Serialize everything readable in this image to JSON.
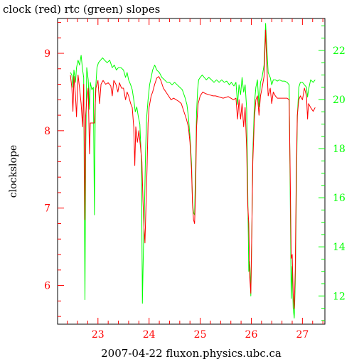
{
  "chart_data": {
    "type": "line",
    "title": "clock (red) rtc (green) slopes",
    "xlabel": "2007-04-22 fluxon.physics.ubc.ca",
    "ylabel": "clockslope",
    "x_ticks": [
      "23",
      "24",
      "25",
      "26",
      "27"
    ],
    "y_left_ticks": [
      "6",
      "7",
      "8",
      "9"
    ],
    "y_right_ticks": [
      "12",
      "14",
      "16",
      "18",
      "20",
      "22"
    ],
    "xlim": [
      22.21,
      27.44
    ],
    "ylim_left": [
      5.5,
      9.45
    ],
    "ylim_right": [
      10.85,
      23.3
    ],
    "colors": {
      "clock": "#ff0000",
      "rtc": "#00ff00",
      "axes": "#000000"
    },
    "series": [
      {
        "name": "clock",
        "axis": "left",
        "color": "#ff0000",
        "points": [
          [
            22.46,
            8.72
          ],
          [
            22.49,
            8.55
          ],
          [
            22.51,
            8.25
          ],
          [
            22.53,
            8.7
          ],
          [
            22.56,
            8.45
          ],
          [
            22.58,
            8.18
          ],
          [
            22.61,
            8.72
          ],
          [
            22.64,
            8.55
          ],
          [
            22.67,
            8.35
          ],
          [
            22.7,
            8.05
          ],
          [
            22.72,
            8.6
          ],
          [
            22.745,
            6.85
          ],
          [
            22.76,
            8.2
          ],
          [
            22.78,
            8.4
          ],
          [
            22.81,
            8.55
          ],
          [
            22.835,
            7.7
          ],
          [
            22.85,
            8.1
          ],
          [
            22.89,
            8.1
          ],
          [
            22.93,
            8.1
          ],
          [
            22.96,
            8.55
          ],
          [
            23.0,
            8.65
          ],
          [
            23.03,
            8.35
          ],
          [
            23.06,
            8.6
          ],
          [
            23.1,
            8.65
          ],
          [
            23.15,
            8.6
          ],
          [
            23.2,
            8.62
          ],
          [
            23.25,
            8.58
          ],
          [
            23.28,
            8.45
          ],
          [
            23.31,
            8.65
          ],
          [
            23.35,
            8.6
          ],
          [
            23.39,
            8.5
          ],
          [
            23.42,
            8.62
          ],
          [
            23.46,
            8.55
          ],
          [
            23.5,
            8.55
          ],
          [
            23.54,
            8.4
          ],
          [
            23.57,
            8.5
          ],
          [
            23.6,
            8.45
          ],
          [
            23.64,
            8.35
          ],
          [
            23.67,
            8.3
          ],
          [
            23.7,
            8.05
          ],
          [
            23.72,
            7.55
          ],
          [
            23.74,
            8.05
          ],
          [
            23.77,
            7.85
          ],
          [
            23.8,
            8.0
          ],
          [
            23.83,
            7.8
          ],
          [
            23.86,
            7.6
          ],
          [
            23.88,
            7.1
          ],
          [
            23.9,
            6.75
          ],
          [
            23.92,
            6.55
          ],
          [
            23.94,
            7.05
          ],
          [
            23.96,
            7.5
          ],
          [
            23.98,
            8.1
          ],
          [
            24.0,
            8.3
          ],
          [
            24.04,
            8.45
          ],
          [
            24.07,
            8.5
          ],
          [
            24.11,
            8.6
          ],
          [
            24.15,
            8.68
          ],
          [
            24.19,
            8.7
          ],
          [
            24.23,
            8.65
          ],
          [
            24.28,
            8.55
          ],
          [
            24.33,
            8.5
          ],
          [
            24.38,
            8.45
          ],
          [
            24.43,
            8.4
          ],
          [
            24.48,
            8.42
          ],
          [
            24.53,
            8.4
          ],
          [
            24.58,
            8.38
          ],
          [
            24.63,
            8.35
          ],
          [
            24.68,
            8.25
          ],
          [
            24.73,
            8.15
          ],
          [
            24.77,
            8.05
          ],
          [
            24.8,
            7.85
          ],
          [
            24.83,
            7.5
          ],
          [
            24.85,
            7.05
          ],
          [
            24.87,
            6.85
          ],
          [
            24.89,
            6.8
          ],
          [
            24.91,
            7.2
          ],
          [
            24.93,
            8.05
          ],
          [
            24.96,
            8.35
          ],
          [
            25.0,
            8.45
          ],
          [
            25.05,
            8.5
          ],
          [
            25.1,
            8.48
          ],
          [
            25.15,
            8.47
          ],
          [
            25.2,
            8.46
          ],
          [
            25.25,
            8.45
          ],
          [
            25.3,
            8.45
          ],
          [
            25.35,
            8.44
          ],
          [
            25.4,
            8.43
          ],
          [
            25.45,
            8.42
          ],
          [
            25.5,
            8.43
          ],
          [
            25.55,
            8.44
          ],
          [
            25.6,
            8.42
          ],
          [
            25.65,
            8.4
          ],
          [
            25.7,
            8.42
          ],
          [
            25.73,
            8.15
          ],
          [
            25.76,
            8.4
          ],
          [
            25.79,
            8.15
          ],
          [
            25.82,
            8.35
          ],
          [
            25.85,
            8.05
          ],
          [
            25.88,
            8.3
          ],
          [
            25.91,
            7.75
          ],
          [
            25.93,
            7.05
          ],
          [
            25.95,
            6.8
          ],
          [
            25.97,
            6.1
          ],
          [
            25.99,
            5.9
          ],
          [
            26.01,
            6.7
          ],
          [
            26.03,
            7.6
          ],
          [
            26.06,
            8.15
          ],
          [
            26.09,
            8.4
          ],
          [
            26.12,
            8.45
          ],
          [
            26.15,
            8.2
          ],
          [
            26.18,
            8.45
          ],
          [
            26.21,
            8.55
          ],
          [
            26.25,
            8.7
          ],
          [
            26.28,
            9.3
          ],
          [
            26.3,
            8.9
          ],
          [
            26.33,
            8.45
          ],
          [
            26.37,
            8.55
          ],
          [
            26.4,
            8.35
          ],
          [
            26.43,
            8.5
          ],
          [
            26.47,
            8.45
          ],
          [
            26.51,
            8.42
          ],
          [
            26.55,
            8.42
          ],
          [
            26.6,
            8.42
          ],
          [
            26.65,
            8.42
          ],
          [
            26.7,
            8.42
          ],
          [
            26.74,
            8.4
          ],
          [
            26.76,
            7.5
          ],
          [
            26.78,
            6.35
          ],
          [
            26.8,
            6.4
          ],
          [
            26.82,
            5.9
          ],
          [
            26.84,
            5.7
          ],
          [
            26.86,
            6.2
          ],
          [
            26.88,
            7.4
          ],
          [
            26.9,
            8.2
          ],
          [
            26.93,
            8.4
          ],
          [
            26.96,
            8.45
          ],
          [
            27.0,
            8.4
          ],
          [
            27.04,
            8.55
          ],
          [
            27.08,
            8.45
          ],
          [
            27.1,
            8.15
          ],
          [
            27.12,
            8.35
          ],
          [
            27.16,
            8.3
          ],
          [
            27.21,
            8.25
          ],
          [
            27.25,
            8.3
          ]
        ]
      },
      {
        "name": "rtc",
        "axis": "right",
        "color": "#00ff00",
        "points": [
          [
            22.46,
            21.1
          ],
          [
            22.49,
            21.0
          ],
          [
            22.51,
            20.5
          ],
          [
            22.53,
            21.2
          ],
          [
            22.56,
            20.7
          ],
          [
            22.58,
            21.3
          ],
          [
            22.61,
            21.6
          ],
          [
            22.64,
            21.4
          ],
          [
            22.67,
            21.8
          ],
          [
            22.7,
            21.2
          ],
          [
            22.72,
            20.9
          ],
          [
            22.745,
            11.85
          ],
          [
            22.76,
            17.8
          ],
          [
            22.78,
            21.3
          ],
          [
            22.81,
            20.8
          ],
          [
            22.835,
            19.6
          ],
          [
            22.85,
            20.7
          ],
          [
            22.88,
            20.4
          ],
          [
            22.91,
            20.5
          ],
          [
            22.93,
            15.3
          ],
          [
            22.95,
            20.3
          ],
          [
            22.98,
            21.3
          ],
          [
            23.01,
            21.5
          ],
          [
            23.05,
            21.6
          ],
          [
            23.09,
            21.7
          ],
          [
            23.13,
            21.6
          ],
          [
            23.18,
            21.5
          ],
          [
            23.23,
            21.6
          ],
          [
            23.28,
            21.3
          ],
          [
            23.32,
            21.4
          ],
          [
            23.36,
            21.2
          ],
          [
            23.4,
            21.3
          ],
          [
            23.45,
            21.3
          ],
          [
            23.5,
            21.2
          ],
          [
            23.54,
            20.9
          ],
          [
            23.57,
            21.1
          ],
          [
            23.6,
            20.8
          ],
          [
            23.64,
            20.6
          ],
          [
            23.67,
            20.4
          ],
          [
            23.7,
            20.0
          ],
          [
            23.73,
            19.5
          ],
          [
            23.76,
            19.7
          ],
          [
            23.79,
            19.3
          ],
          [
            23.82,
            19.0
          ],
          [
            23.85,
            17.5
          ],
          [
            23.87,
            11.7
          ],
          [
            23.89,
            14.0
          ],
          [
            23.91,
            15.5
          ],
          [
            23.93,
            17.8
          ],
          [
            23.95,
            19.2
          ],
          [
            23.98,
            20.0
          ],
          [
            24.01,
            20.6
          ],
          [
            24.04,
            20.9
          ],
          [
            24.07,
            21.2
          ],
          [
            24.11,
            21.4
          ],
          [
            24.15,
            21.2
          ],
          [
            24.2,
            21.1
          ],
          [
            24.25,
            20.9
          ],
          [
            24.3,
            20.8
          ],
          [
            24.35,
            20.7
          ],
          [
            24.4,
            20.7
          ],
          [
            24.45,
            20.6
          ],
          [
            24.5,
            20.7
          ],
          [
            24.55,
            20.6
          ],
          [
            24.6,
            20.5
          ],
          [
            24.65,
            20.4
          ],
          [
            24.7,
            20.1
          ],
          [
            24.74,
            19.8
          ],
          [
            24.77,
            19.3
          ],
          [
            24.8,
            18.5
          ],
          [
            24.83,
            17.4
          ],
          [
            24.85,
            15.8
          ],
          [
            24.87,
            15.4
          ],
          [
            24.89,
            15.3
          ],
          [
            24.91,
            17.2
          ],
          [
            24.93,
            19.5
          ],
          [
            24.95,
            20.4
          ],
          [
            24.97,
            20.8
          ],
          [
            25.0,
            20.9
          ],
          [
            25.04,
            21.0
          ],
          [
            25.08,
            20.9
          ],
          [
            25.12,
            20.8
          ],
          [
            25.17,
            20.9
          ],
          [
            25.22,
            20.8
          ],
          [
            25.27,
            20.7
          ],
          [
            25.32,
            20.8
          ],
          [
            25.37,
            20.7
          ],
          [
            25.42,
            20.8
          ],
          [
            25.47,
            20.7
          ],
          [
            25.52,
            20.75
          ],
          [
            25.57,
            20.6
          ],
          [
            25.61,
            20.7
          ],
          [
            25.66,
            20.55
          ],
          [
            25.7,
            20.7
          ],
          [
            25.73,
            19.8
          ],
          [
            25.76,
            20.6
          ],
          [
            25.79,
            20.2
          ],
          [
            25.82,
            20.9
          ],
          [
            25.85,
            20.3
          ],
          [
            25.88,
            20.6
          ],
          [
            25.91,
            19.6
          ],
          [
            25.93,
            16.5
          ],
          [
            25.95,
            13.0
          ],
          [
            25.97,
            13.4
          ],
          [
            25.99,
            12.0
          ],
          [
            26.01,
            14.5
          ],
          [
            26.03,
            17.8
          ],
          [
            26.06,
            19.8
          ],
          [
            26.09,
            20.5
          ],
          [
            26.12,
            20.8
          ],
          [
            26.15,
            19.7
          ],
          [
            26.18,
            20.7
          ],
          [
            26.21,
            20.9
          ],
          [
            26.25,
            21.4
          ],
          [
            26.28,
            23.1
          ],
          [
            26.3,
            22.3
          ],
          [
            26.33,
            21.1
          ],
          [
            26.37,
            20.9
          ],
          [
            26.4,
            20.6
          ],
          [
            26.43,
            20.8
          ],
          [
            26.47,
            20.8
          ],
          [
            26.51,
            20.75
          ],
          [
            26.55,
            20.8
          ],
          [
            26.6,
            20.75
          ],
          [
            26.65,
            20.75
          ],
          [
            26.7,
            20.7
          ],
          [
            26.74,
            20.6
          ],
          [
            26.76,
            16.5
          ],
          [
            26.78,
            11.9
          ],
          [
            26.8,
            13.2
          ],
          [
            26.82,
            11.5
          ],
          [
            26.84,
            11.1
          ],
          [
            26.86,
            12.5
          ],
          [
            26.88,
            15.8
          ],
          [
            26.9,
            19.3
          ],
          [
            26.93,
            20.5
          ],
          [
            26.96,
            20.7
          ],
          [
            27.0,
            20.7
          ],
          [
            27.04,
            20.6
          ],
          [
            27.08,
            20.5
          ],
          [
            27.1,
            20.1
          ],
          [
            27.12,
            20.4
          ],
          [
            27.16,
            20.8
          ],
          [
            27.21,
            20.7
          ],
          [
            27.25,
            20.8
          ]
        ]
      }
    ]
  }
}
